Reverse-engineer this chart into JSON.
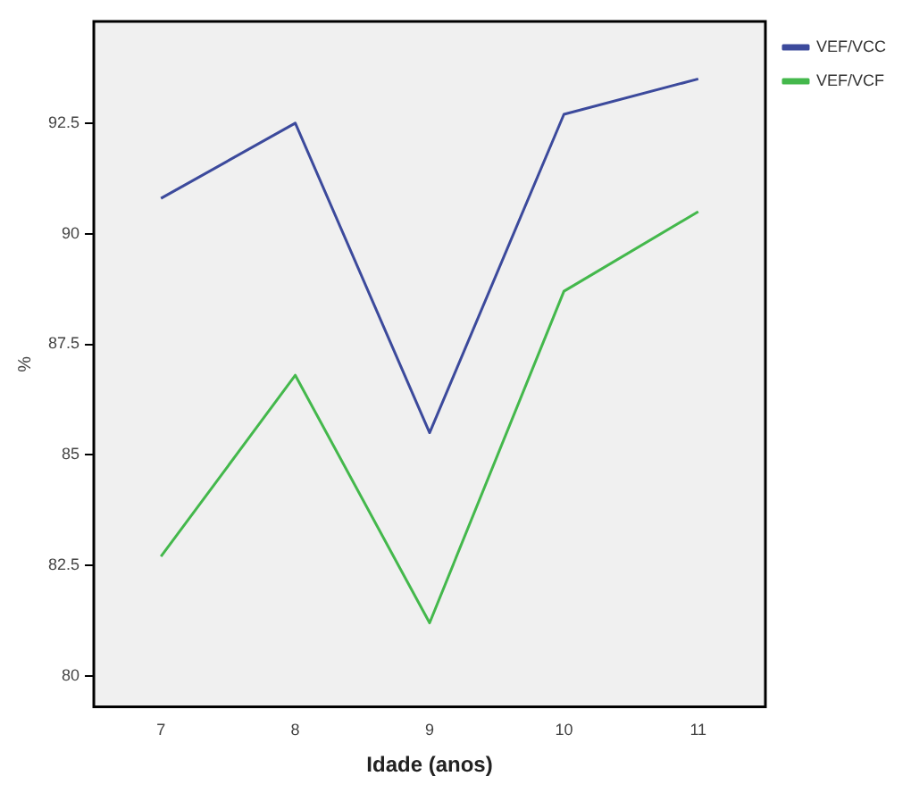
{
  "chart_data": {
    "type": "line",
    "xlabel": "Idade (anos)",
    "ylabel": "%",
    "categories": [
      "7",
      "8",
      "9",
      "10",
      "11"
    ],
    "series": [
      {
        "name": "VEF/VCC",
        "color": "#3c4a9c",
        "values": [
          90.8,
          92.5,
          85.5,
          92.7,
          93.5
        ]
      },
      {
        "name": "VEF/VCF",
        "color": "#44b84c",
        "values": [
          82.7,
          86.8,
          81.2,
          88.7,
          90.5
        ]
      }
    ],
    "ylim": [
      79.3,
      94.8
    ],
    "yticks": [
      80,
      82.5,
      85,
      87.5,
      90,
      92.5
    ],
    "grid": false,
    "legend": "top right",
    "marker": "none"
  }
}
